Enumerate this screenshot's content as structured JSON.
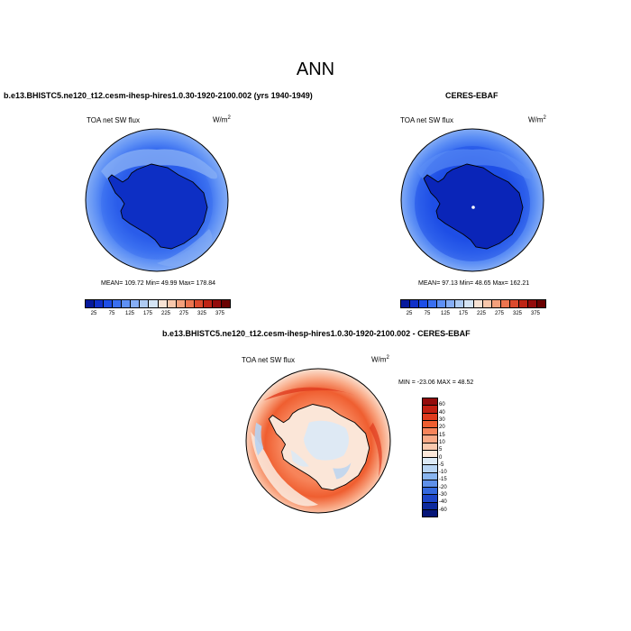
{
  "main_title": "ANN",
  "panels": [
    {
      "title": "b.e13.BHISTC5.ne120_t12.cesm-ihesp-hires1.0.30-1920-2100.002 (yrs 1940-1949)",
      "variable": "TOA net SW flux",
      "unit_base": "W/m",
      "unit_exp": "2",
      "stats": "MEAN= 109.72  Min= 49.99  Max= 178.84"
    },
    {
      "title": "CERES-EBAF",
      "variable": "TOA net SW flux",
      "unit_base": "W/m",
      "unit_exp": "2",
      "stats": "MEAN= 97.13  Min= 48.65  Max= 162.21"
    },
    {
      "title": "b.e13.BHISTC5.ne120_t12.cesm-ihesp-hires1.0.30-1920-2100.002 - CERES-EBAF",
      "variable": "TOA net SW flux",
      "unit_base": "W/m",
      "unit_exp": "2",
      "stats": "MIN = -23.06 MAX =  48.52"
    }
  ],
  "colorbar_abs": {
    "colors": [
      "#06199c",
      "#1030c9",
      "#1e4ee6",
      "#3a6ff0",
      "#5e90f5",
      "#86aef5",
      "#aecbf2",
      "#d4e4f4",
      "#f7e2d3",
      "#f8c7ab",
      "#f4a07c",
      "#ec7550",
      "#dc4a2d",
      "#be2415",
      "#930b0b",
      "#690000"
    ],
    "labels": [
      "25",
      "75",
      "125",
      "175",
      "225",
      "275",
      "325",
      "375"
    ]
  },
  "colorbar_diff": {
    "colors": [
      "#930b0b",
      "#c21f12",
      "#e03b1e",
      "#ef5e30",
      "#f7845a",
      "#f9a986",
      "#f9c9ae",
      "#fbe6d8",
      "#dce9f5",
      "#b7d3f2",
      "#88b4ef",
      "#5e90ea",
      "#3468dd",
      "#1d45c7",
      "#0d2a9e",
      "#061678"
    ],
    "labels": [
      "60",
      "40",
      "30",
      "20",
      "15",
      "10",
      "5",
      "0",
      "-5",
      "-10",
      "-15",
      "-20",
      "-30",
      "-40",
      "-60"
    ]
  }
}
